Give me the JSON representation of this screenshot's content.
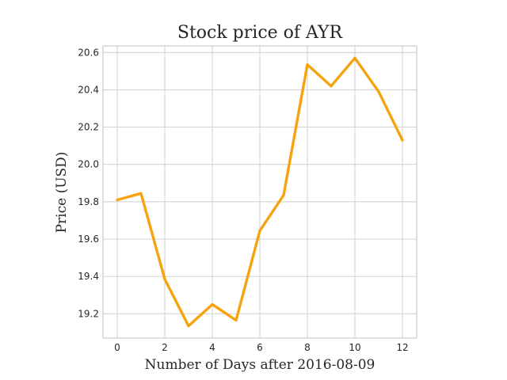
{
  "chart_data": {
    "type": "line",
    "title": "Stock price of AYR",
    "xlabel": "Number of Days after 2016-08-09",
    "ylabel": "Price (USD)",
    "xlim": [
      -0.6,
      12.6
    ],
    "ylim": [
      19.07,
      20.635
    ],
    "xticks": [
      0,
      2,
      4,
      6,
      8,
      10,
      12
    ],
    "yticks": [
      19.2,
      19.4,
      19.6,
      19.8,
      20.0,
      20.2,
      20.4,
      20.6
    ],
    "xtick_labels": [
      "0",
      "2",
      "4",
      "6",
      "8",
      "10",
      "12"
    ],
    "ytick_labels": [
      "19.2",
      "19.4",
      "19.6",
      "19.8",
      "20.0",
      "20.2",
      "20.4",
      "20.6"
    ],
    "grid": true,
    "series": [
      {
        "color": "#f5a30f",
        "x": [
          0,
          1,
          2,
          3,
          4,
          5,
          6,
          7,
          8,
          9,
          10,
          11,
          12
        ],
        "y": [
          19.81,
          19.845,
          19.385,
          19.135,
          19.25,
          19.165,
          19.645,
          19.835,
          20.535,
          20.42,
          20.57,
          20.39,
          20.13
        ]
      }
    ]
  }
}
